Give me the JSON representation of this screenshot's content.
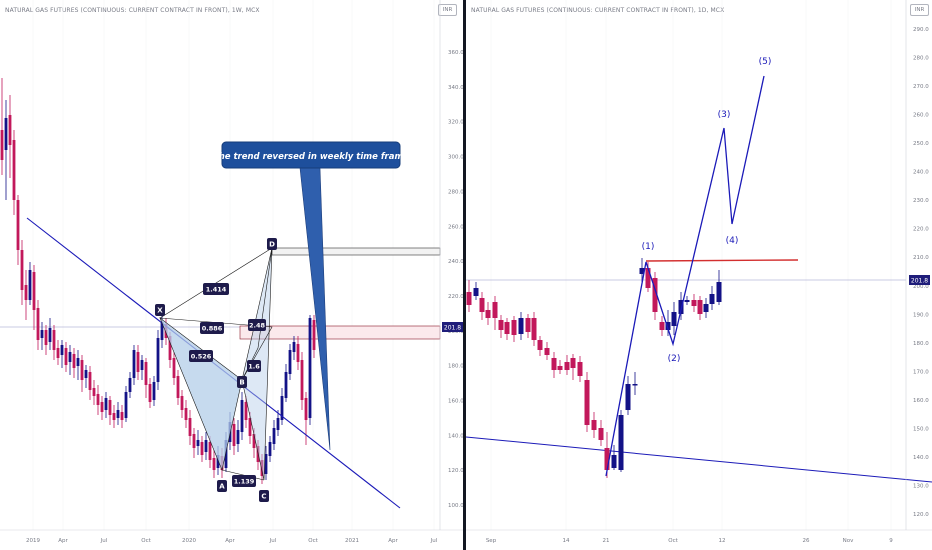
{
  "left_chart": {
    "title": "NATURAL GAS FUTURES (CONTINUOUS: CURRENT CONTRACT IN FRONT), 1W, MCX",
    "currency": "INR",
    "y_ticks": [
      "360.0",
      "340.0",
      "320.0",
      "300.0",
      "280.0",
      "260.0",
      "240.0",
      "220.0",
      "200.0",
      "180.0",
      "160.0",
      "140.0",
      "120.0",
      "100.0"
    ],
    "x_ticks": [
      "2019",
      "Apr",
      "Jul",
      "Oct",
      "2020",
      "Apr",
      "Jul",
      "Oct",
      "2021",
      "Apr",
      "Jul"
    ],
    "price_label": "201.8",
    "callout_text": "The trend reversed in weekly time frame",
    "pattern_points": [
      "X",
      "A",
      "B",
      "C",
      "D"
    ],
    "ratio_labels": [
      "1.414",
      "0.886",
      "2.48",
      "0.526",
      "1.6",
      "1.139"
    ],
    "colors": {
      "up": "#131287",
      "down": "#c2185b",
      "trend": "#1b1ab8",
      "pattern_fill": "#b3cde8",
      "callout": "#1e4f9c"
    }
  },
  "right_chart": {
    "title": "NATURAL GAS FUTURES (CONTINUOUS: CURRENT CONTRACT IN FRONT), 1D, MCX",
    "currency": "INR",
    "y_ticks": [
      "290.0",
      "280.0",
      "270.0",
      "260.0",
      "250.0",
      "240.0",
      "230.0",
      "220.0",
      "210.0",
      "200.0",
      "190.0",
      "180.0",
      "170.0",
      "160.0",
      "150.0",
      "140.0",
      "130.0",
      "120.0"
    ],
    "x_ticks": [
      "Sep",
      "14",
      "21",
      "Oct",
      "12",
      "26",
      "Nov",
      "9"
    ],
    "price_label": "201.8",
    "wave_labels": [
      "(1)",
      "(2)",
      "(3)",
      "(4)",
      "(5)"
    ],
    "colors": {
      "up": "#131287",
      "down": "#c2185b",
      "wave": "#1b1ab8",
      "resistance": "#d32f2f"
    }
  }
}
